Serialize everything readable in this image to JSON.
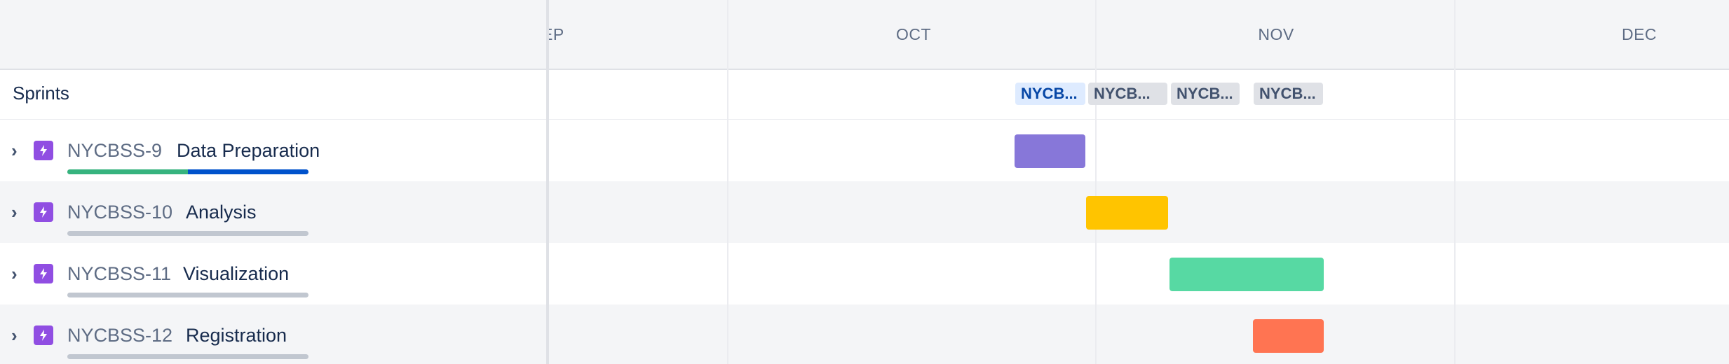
{
  "timeline": {
    "months": [
      "EP",
      "OCT",
      "NOV",
      "DEC"
    ]
  },
  "sprints_row": {
    "label": "Sprints",
    "chips": [
      "NYCB...",
      "NYCB...",
      "NYCB...",
      "NYCB..."
    ]
  },
  "issues": [
    {
      "key": "NYCBSS-9",
      "summary": "Data Preparation",
      "bar_color": "#8777d9",
      "progress": {
        "done": 0.5,
        "in_progress": 0.5
      }
    },
    {
      "key": "NYCBSS-10",
      "summary": "Analysis",
      "bar_color": "#ffc400",
      "progress": {
        "done": 0,
        "in_progress": 0
      }
    },
    {
      "key": "NYCBSS-11",
      "summary": "Visualization",
      "bar_color": "#57d9a3",
      "progress": {
        "done": 0,
        "in_progress": 0
      }
    },
    {
      "key": "NYCBSS-12",
      "summary": "Registration",
      "bar_color": "#ff7452",
      "progress": {
        "done": 0,
        "in_progress": 0
      }
    }
  ],
  "colors": {
    "header_bg": "#f4f5f7",
    "epic_icon": "#904ee2",
    "progress_done": "#36b37e",
    "progress_in_progress": "#0052cc",
    "progress_track": "#c1c7d0"
  },
  "icons": {
    "expand": "chevron-right-icon",
    "issue_type": "epic-lightning-icon"
  }
}
